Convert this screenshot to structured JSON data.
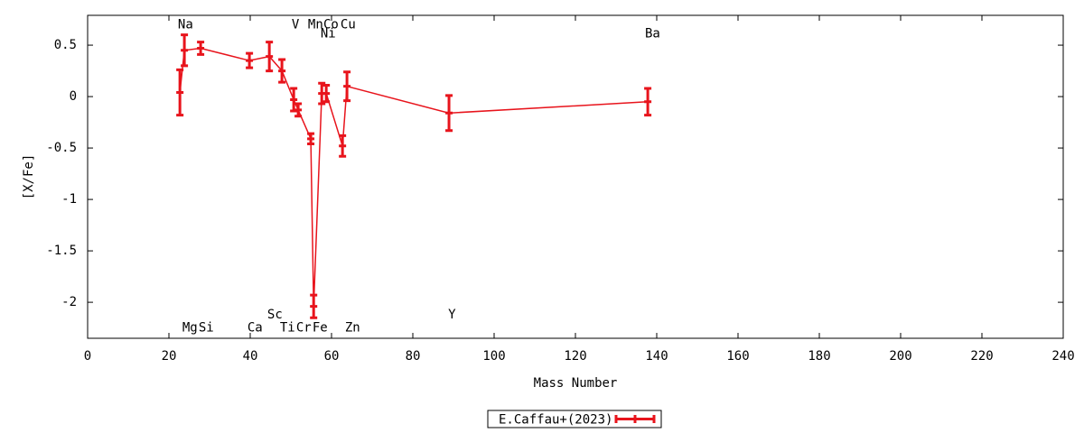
{
  "chart_data": {
    "type": "errorline",
    "x_label": "Mass Number",
    "y_label": "[X/Fe]",
    "xlim": [
      0,
      240
    ],
    "xticks": [
      0,
      20,
      40,
      60,
      80,
      100,
      120,
      140,
      160,
      180,
      200,
      220,
      240
    ],
    "ylim": [
      -2.35,
      0.79
    ],
    "yticks": [
      0.5,
      0,
      -0.5,
      -1,
      -1.5,
      -2
    ],
    "legend": "bottom",
    "series": [
      {
        "name": "E.Caffau+(2023)",
        "color": "#e8141c",
        "x": [
          22.7,
          23.8,
          27.8,
          39.8,
          44.7,
          47.8,
          50.7,
          51.8,
          54.9,
          55.6,
          57.6,
          58.7,
          62.7,
          63.8,
          88.9,
          137.8
        ],
        "values": [
          0.04,
          0.45,
          0.47,
          0.35,
          0.39,
          0.25,
          -0.03,
          -0.13,
          -0.41,
          -2.04,
          0.03,
          0.03,
          -0.48,
          0.1,
          -0.16,
          -0.05
        ],
        "errors": [
          0.22,
          0.15,
          0.06,
          0.07,
          0.14,
          0.11,
          0.11,
          0.06,
          0.05,
          0.11,
          0.1,
          0.08,
          0.1,
          0.14,
          0.17,
          0.13
        ]
      }
    ],
    "annotations": [
      {
        "text": "Na",
        "x": 22.2,
        "y": 0.7
      },
      {
        "text": "Mg",
        "x": 23.3,
        "y": -2.25
      },
      {
        "text": "Si",
        "x": 27.3,
        "y": -2.25
      },
      {
        "text": "Ca",
        "x": 39.3,
        "y": -2.25
      },
      {
        "text": "Sc",
        "x": 44.2,
        "y": -2.12
      },
      {
        "text": "Ti",
        "x": 47.3,
        "y": -2.25
      },
      {
        "text": "V",
        "x": 50.2,
        "y": 0.7
      },
      {
        "text": "Cr",
        "x": 51.3,
        "y": -2.25
      },
      {
        "text": "Mn",
        "x": 54.2,
        "y": 0.7
      },
      {
        "text": "Fe",
        "x": 55.3,
        "y": -2.25
      },
      {
        "text": "Ni",
        "x": 57.3,
        "y": 0.61
      },
      {
        "text": "Co",
        "x": 58.0,
        "y": 0.7
      },
      {
        "text": "Cu",
        "x": 62.2,
        "y": 0.7
      },
      {
        "text": "Zn",
        "x": 63.3,
        "y": -2.25
      },
      {
        "text": "Y",
        "x": 88.7,
        "y": -2.12
      },
      {
        "text": "Ba",
        "x": 137.1,
        "y": 0.61
      }
    ]
  }
}
